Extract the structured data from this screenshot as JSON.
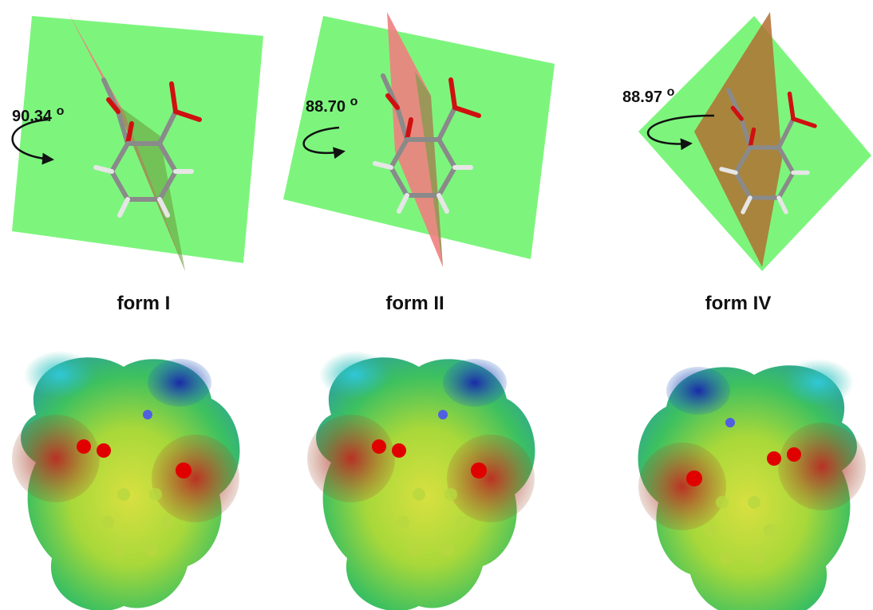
{
  "panels": [
    {
      "angle": "90.34",
      "angle_unit": "o",
      "label": "form I"
    },
    {
      "angle": "88.70",
      "angle_unit": "o",
      "label": "form II"
    },
    {
      "angle": "88.97",
      "angle_unit": "o",
      "label": "form IV"
    }
  ]
}
